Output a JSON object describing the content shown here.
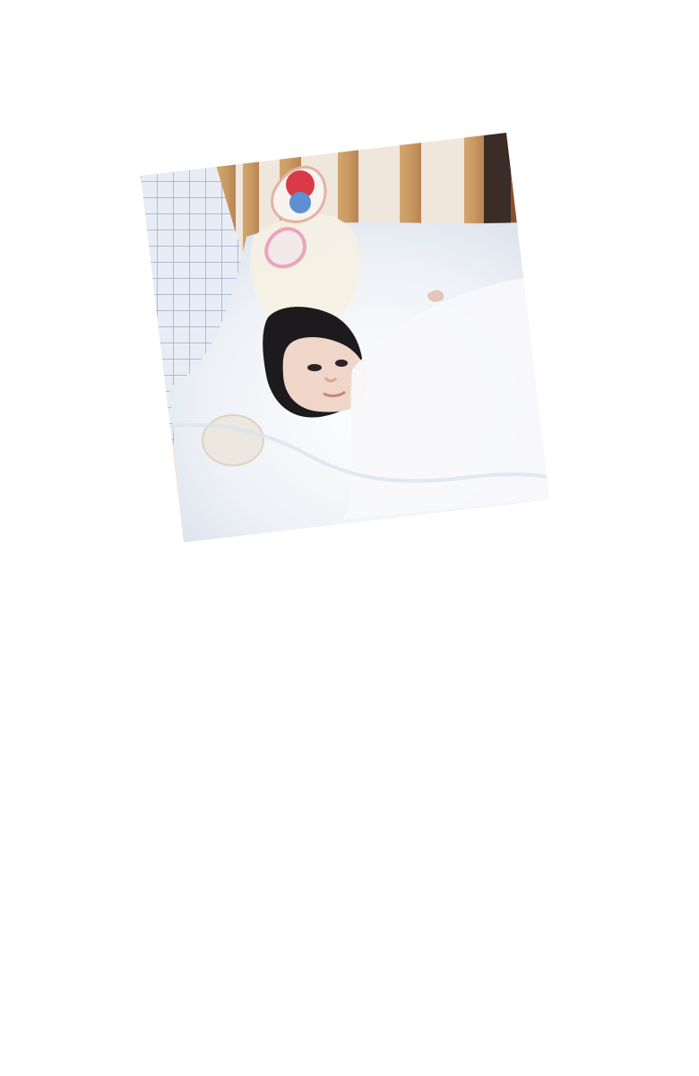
{
  "page": {
    "background_color": "#ffffff"
  },
  "photo": {
    "subject": "sleeping-baby-in-crib",
    "visible_objects": [
      "baby",
      "crib-slats",
      "white-blanket",
      "plaid-side-panel",
      "hanging-rattle-toy",
      "pacifier-or-small-cloth"
    ],
    "colors": {
      "blanket": "#f3f4f8",
      "crib_wood": "#c89a62",
      "crib_dark": "#3a2c26",
      "wall": "#efe7dc",
      "panel_grid": "#8f9bc2",
      "panel_bg": "#e8edf5",
      "baby_skin": "#efd6c8",
      "baby_hair": "#1d1a1d",
      "toy_red": "#d83a47",
      "toy_blue": "#5f8fd0",
      "toy_pink": "#e9a5ba"
    }
  }
}
